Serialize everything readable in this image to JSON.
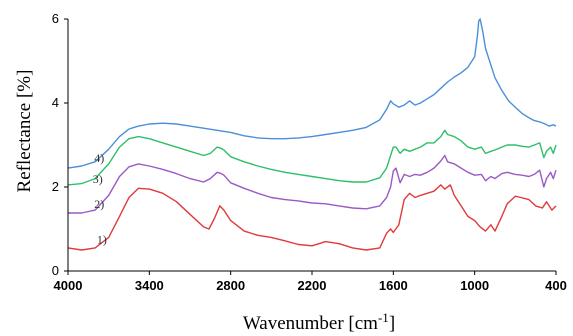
{
  "chart_data": {
    "type": "line",
    "title": "",
    "xlabel": "Wavenumber [cm",
    "xlabel_sup": "-1",
    "xlabel_suffix": "]",
    "ylabel": "Reflectance [%]",
    "x_reversed": true,
    "xlim": [
      4000,
      400
    ],
    "ylim": [
      0,
      6
    ],
    "x_ticks": [
      4000,
      3400,
      2800,
      2200,
      1600,
      1000,
      400
    ],
    "x_tick_labels": [
      "4000",
      "3400",
      "2800",
      "2200",
      "1600",
      "1000",
      "400"
    ],
    "y_ticks": [
      0,
      2,
      4,
      6
    ],
    "y_tick_labels": [
      "0",
      "2",
      "4",
      "6"
    ],
    "grid": false,
    "series": [
      {
        "name": "1)",
        "color": "#e03a3a",
        "label_at": [
          3750,
          0.65
        ],
        "points": [
          [
            4000,
            0.55
          ],
          [
            3900,
            0.5
          ],
          [
            3800,
            0.55
          ],
          [
            3700,
            0.8
          ],
          [
            3620,
            1.3
          ],
          [
            3550,
            1.75
          ],
          [
            3480,
            1.97
          ],
          [
            3400,
            1.95
          ],
          [
            3300,
            1.85
          ],
          [
            3200,
            1.65
          ],
          [
            3100,
            1.35
          ],
          [
            3000,
            1.05
          ],
          [
            2960,
            1.0
          ],
          [
            2920,
            1.25
          ],
          [
            2880,
            1.55
          ],
          [
            2850,
            1.45
          ],
          [
            2800,
            1.2
          ],
          [
            2700,
            0.95
          ],
          [
            2600,
            0.85
          ],
          [
            2500,
            0.8
          ],
          [
            2400,
            0.72
          ],
          [
            2300,
            0.63
          ],
          [
            2200,
            0.6
          ],
          [
            2100,
            0.7
          ],
          [
            2000,
            0.65
          ],
          [
            1900,
            0.55
          ],
          [
            1800,
            0.5
          ],
          [
            1700,
            0.55
          ],
          [
            1650,
            0.9
          ],
          [
            1620,
            1.0
          ],
          [
            1600,
            0.92
          ],
          [
            1560,
            1.1
          ],
          [
            1520,
            1.7
          ],
          [
            1480,
            1.85
          ],
          [
            1440,
            1.75
          ],
          [
            1400,
            1.8
          ],
          [
            1350,
            1.85
          ],
          [
            1300,
            1.9
          ],
          [
            1250,
            2.05
          ],
          [
            1220,
            1.95
          ],
          [
            1180,
            2.05
          ],
          [
            1150,
            1.8
          ],
          [
            1100,
            1.55
          ],
          [
            1050,
            1.3
          ],
          [
            1000,
            1.2
          ],
          [
            960,
            1.05
          ],
          [
            920,
            0.95
          ],
          [
            880,
            1.1
          ],
          [
            850,
            0.95
          ],
          [
            800,
            1.3
          ],
          [
            760,
            1.6
          ],
          [
            700,
            1.78
          ],
          [
            660,
            1.75
          ],
          [
            600,
            1.7
          ],
          [
            550,
            1.55
          ],
          [
            500,
            1.5
          ],
          [
            470,
            1.65
          ],
          [
            430,
            1.45
          ],
          [
            400,
            1.55
          ]
        ]
      },
      {
        "name": "2)",
        "color": "#9b59c6",
        "label_at": [
          3770,
          1.5
        ],
        "points": [
          [
            4000,
            1.38
          ],
          [
            3900,
            1.38
          ],
          [
            3800,
            1.45
          ],
          [
            3700,
            1.8
          ],
          [
            3620,
            2.25
          ],
          [
            3550,
            2.48
          ],
          [
            3480,
            2.55
          ],
          [
            3400,
            2.5
          ],
          [
            3300,
            2.42
          ],
          [
            3200,
            2.32
          ],
          [
            3100,
            2.2
          ],
          [
            3000,
            2.12
          ],
          [
            2950,
            2.2
          ],
          [
            2900,
            2.35
          ],
          [
            2870,
            2.32
          ],
          [
            2850,
            2.28
          ],
          [
            2800,
            2.1
          ],
          [
            2700,
            1.97
          ],
          [
            2600,
            1.85
          ],
          [
            2500,
            1.75
          ],
          [
            2400,
            1.7
          ],
          [
            2300,
            1.67
          ],
          [
            2200,
            1.62
          ],
          [
            2100,
            1.6
          ],
          [
            2000,
            1.55
          ],
          [
            1900,
            1.5
          ],
          [
            1800,
            1.48
          ],
          [
            1700,
            1.55
          ],
          [
            1650,
            1.75
          ],
          [
            1620,
            2.0
          ],
          [
            1600,
            2.38
          ],
          [
            1580,
            2.45
          ],
          [
            1550,
            2.1
          ],
          [
            1520,
            2.3
          ],
          [
            1480,
            2.25
          ],
          [
            1440,
            2.3
          ],
          [
            1400,
            2.28
          ],
          [
            1350,
            2.35
          ],
          [
            1300,
            2.45
          ],
          [
            1250,
            2.62
          ],
          [
            1220,
            2.75
          ],
          [
            1200,
            2.6
          ],
          [
            1150,
            2.55
          ],
          [
            1100,
            2.45
          ],
          [
            1050,
            2.35
          ],
          [
            1000,
            2.28
          ],
          [
            950,
            2.3
          ],
          [
            920,
            2.15
          ],
          [
            880,
            2.25
          ],
          [
            850,
            2.2
          ],
          [
            800,
            2.32
          ],
          [
            760,
            2.35
          ],
          [
            700,
            2.3
          ],
          [
            650,
            2.28
          ],
          [
            600,
            2.25
          ],
          [
            560,
            2.3
          ],
          [
            520,
            2.4
          ],
          [
            490,
            2.0
          ],
          [
            470,
            2.2
          ],
          [
            440,
            2.35
          ],
          [
            420,
            2.2
          ],
          [
            400,
            2.4
          ]
        ]
      },
      {
        "name": "3)",
        "color": "#2fbf6a",
        "label_at": [
          3780,
          2.1
        ],
        "points": [
          [
            4000,
            2.05
          ],
          [
            3900,
            2.08
          ],
          [
            3800,
            2.2
          ],
          [
            3700,
            2.55
          ],
          [
            3620,
            2.95
          ],
          [
            3550,
            3.15
          ],
          [
            3480,
            3.2
          ],
          [
            3400,
            3.15
          ],
          [
            3300,
            3.05
          ],
          [
            3200,
            2.95
          ],
          [
            3100,
            2.85
          ],
          [
            3000,
            2.75
          ],
          [
            2950,
            2.8
          ],
          [
            2900,
            2.95
          ],
          [
            2870,
            2.92
          ],
          [
            2850,
            2.88
          ],
          [
            2800,
            2.72
          ],
          [
            2700,
            2.6
          ],
          [
            2600,
            2.5
          ],
          [
            2500,
            2.42
          ],
          [
            2400,
            2.35
          ],
          [
            2300,
            2.3
          ],
          [
            2200,
            2.25
          ],
          [
            2100,
            2.2
          ],
          [
            2000,
            2.15
          ],
          [
            1900,
            2.12
          ],
          [
            1800,
            2.12
          ],
          [
            1700,
            2.22
          ],
          [
            1650,
            2.45
          ],
          [
            1620,
            2.75
          ],
          [
            1600,
            2.95
          ],
          [
            1580,
            2.95
          ],
          [
            1550,
            2.8
          ],
          [
            1520,
            2.9
          ],
          [
            1480,
            2.85
          ],
          [
            1440,
            2.9
          ],
          [
            1400,
            2.95
          ],
          [
            1350,
            3.05
          ],
          [
            1300,
            3.05
          ],
          [
            1250,
            3.2
          ],
          [
            1220,
            3.35
          ],
          [
            1200,
            3.25
          ],
          [
            1150,
            3.2
          ],
          [
            1100,
            3.1
          ],
          [
            1050,
            2.95
          ],
          [
            1000,
            2.9
          ],
          [
            950,
            2.95
          ],
          [
            920,
            2.8
          ],
          [
            880,
            2.85
          ],
          [
            850,
            2.88
          ],
          [
            800,
            2.95
          ],
          [
            760,
            3.0
          ],
          [
            700,
            3.0
          ],
          [
            650,
            2.97
          ],
          [
            600,
            2.95
          ],
          [
            560,
            3.0
          ],
          [
            520,
            3.05
          ],
          [
            490,
            2.7
          ],
          [
            470,
            2.85
          ],
          [
            440,
            2.95
          ],
          [
            420,
            2.8
          ],
          [
            400,
            3.0
          ]
        ]
      },
      {
        "name": "4)",
        "color": "#4a90d9",
        "label_at": [
          3770,
          2.6
        ],
        "points": [
          [
            4000,
            2.45
          ],
          [
            3900,
            2.5
          ],
          [
            3800,
            2.6
          ],
          [
            3700,
            2.9
          ],
          [
            3620,
            3.2
          ],
          [
            3550,
            3.38
          ],
          [
            3480,
            3.45
          ],
          [
            3400,
            3.5
          ],
          [
            3300,
            3.52
          ],
          [
            3200,
            3.5
          ],
          [
            3100,
            3.45
          ],
          [
            3000,
            3.4
          ],
          [
            2900,
            3.35
          ],
          [
            2800,
            3.3
          ],
          [
            2700,
            3.22
          ],
          [
            2600,
            3.17
          ],
          [
            2500,
            3.15
          ],
          [
            2400,
            3.15
          ],
          [
            2300,
            3.17
          ],
          [
            2200,
            3.2
          ],
          [
            2100,
            3.25
          ],
          [
            2000,
            3.3
          ],
          [
            1900,
            3.35
          ],
          [
            1800,
            3.42
          ],
          [
            1700,
            3.6
          ],
          [
            1650,
            3.85
          ],
          [
            1620,
            4.05
          ],
          [
            1600,
            3.98
          ],
          [
            1560,
            3.9
          ],
          [
            1520,
            3.95
          ],
          [
            1480,
            4.05
          ],
          [
            1440,
            3.95
          ],
          [
            1400,
            4.0
          ],
          [
            1350,
            4.1
          ],
          [
            1300,
            4.2
          ],
          [
            1250,
            4.35
          ],
          [
            1200,
            4.5
          ],
          [
            1150,
            4.62
          ],
          [
            1100,
            4.72
          ],
          [
            1050,
            4.85
          ],
          [
            1000,
            5.1
          ],
          [
            980,
            5.6
          ],
          [
            970,
            5.95
          ],
          [
            960,
            6.0
          ],
          [
            940,
            5.7
          ],
          [
            920,
            5.3
          ],
          [
            880,
            4.9
          ],
          [
            850,
            4.6
          ],
          [
            800,
            4.3
          ],
          [
            750,
            4.05
          ],
          [
            700,
            3.9
          ],
          [
            650,
            3.75
          ],
          [
            600,
            3.65
          ],
          [
            560,
            3.58
          ],
          [
            520,
            3.55
          ],
          [
            480,
            3.5
          ],
          [
            450,
            3.45
          ],
          [
            420,
            3.48
          ],
          [
            400,
            3.45
          ]
        ]
      }
    ]
  }
}
